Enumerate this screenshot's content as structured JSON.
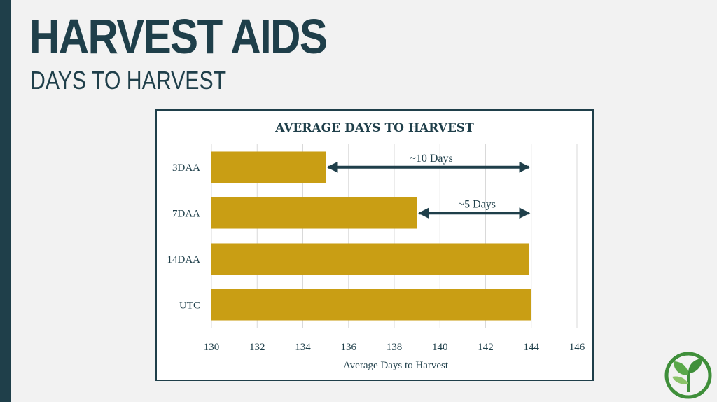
{
  "slide": {
    "title": "HARVEST AIDS",
    "subtitle": "DAYS TO HARVEST"
  },
  "colors": {
    "accent": "#1f3f4a",
    "bar": "#c99e14",
    "background": "#f2f2f2"
  },
  "logo_icon": "leaf-sprout-icon",
  "chart_data": {
    "type": "bar",
    "orientation": "horizontal",
    "title": "AVERAGE DAYS TO HARVEST",
    "xlabel": "Average Days to Harvest",
    "ylabel": "",
    "categories": [
      "3DAA",
      "7DAA",
      "14DAA",
      "UTC"
    ],
    "values": [
      135,
      139,
      143.9,
      144
    ],
    "xlim": [
      130,
      146
    ],
    "xticks": [
      130,
      132,
      134,
      136,
      138,
      140,
      142,
      144,
      146
    ],
    "grid": true,
    "annotations": [
      {
        "label": "~10 Days",
        "category": "3DAA",
        "from": 135,
        "to": 144
      },
      {
        "label": "~5 Days",
        "category": "7DAA",
        "from": 139,
        "to": 144
      }
    ]
  }
}
